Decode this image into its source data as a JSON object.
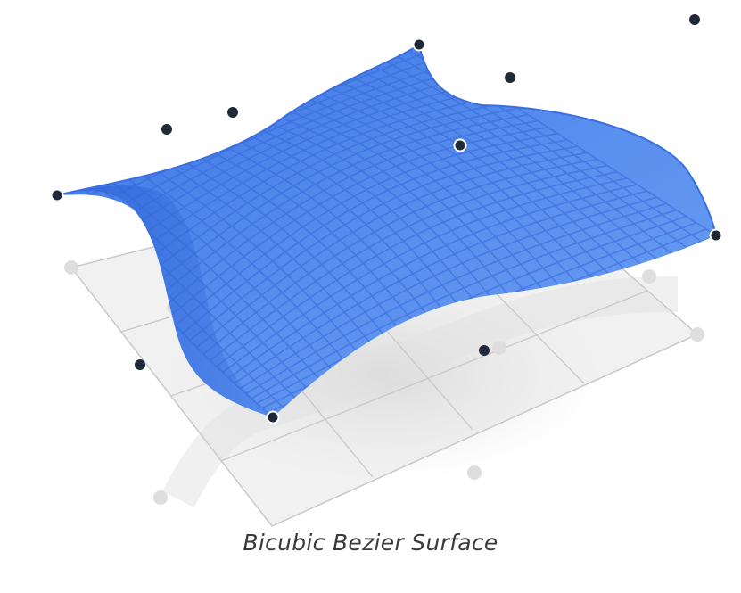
{
  "caption": "Bicubic Bezier Surface",
  "colors": {
    "surface": "#4f86ea",
    "surface_dark": "#2c63d8",
    "mesh_line": "#3f72df",
    "control_point": "#1f2937",
    "ground_plane": "#eeeeee",
    "ground_grid": "#c9c9c9",
    "shadow": "#dcdcdc"
  },
  "icons": [
    "control-point-icon"
  ]
}
